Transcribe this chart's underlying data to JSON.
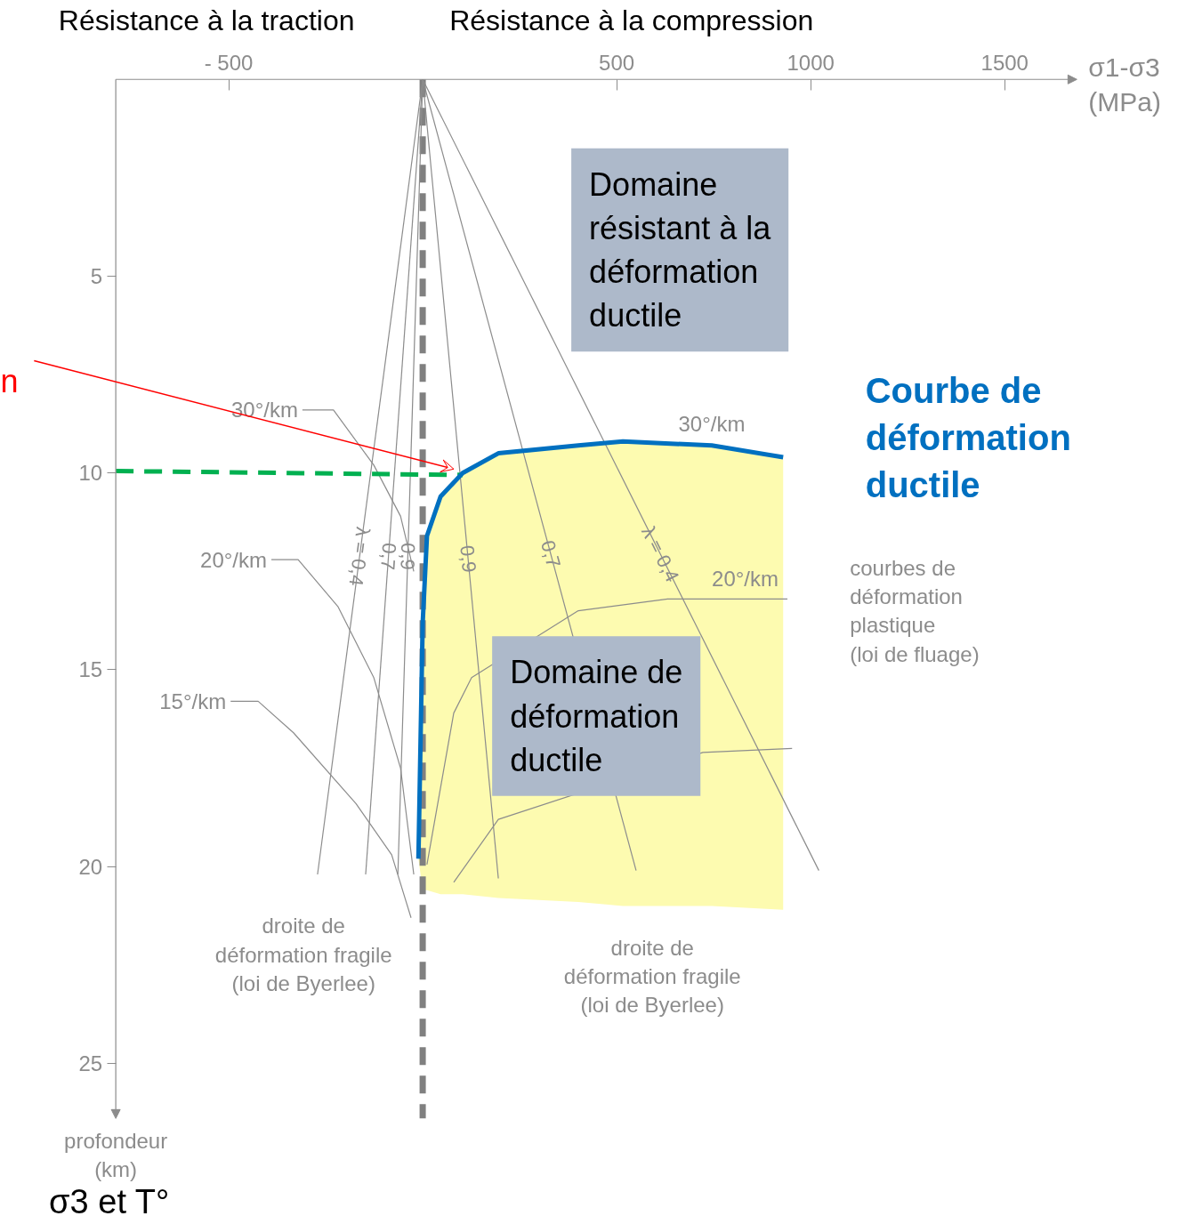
{
  "chart_data": {
    "type": "line",
    "xlabel": "σ1-σ3 (MPa)",
    "ylabel": "profondeur (km)",
    "xlim": [
      -791,
      1686
    ],
    "ylim": [
      26.4,
      0
    ],
    "xticks": [
      {
        "value": -500,
        "label": "- 500"
      },
      500,
      1000,
      1500
    ],
    "yticks": [
      5,
      10,
      15,
      20,
      25
    ],
    "grid": false,
    "series": [
      {
        "name": "λ = 0,4",
        "color": "#8c8c8c",
        "x": [
          0,
          1021
        ],
        "values": [
          0,
          20.1
        ]
      },
      {
        "name": "0,7",
        "color": "#8c8c8c",
        "x": [
          0,
          550
        ],
        "values": [
          0,
          20.1
        ]
      },
      {
        "name": "0,9",
        "color": "#8c8c8c",
        "x": [
          0,
          195
        ],
        "values": [
          0,
          20.3
        ]
      },
      {
        "name": "λ = 0,4",
        "color": "#8c8c8c",
        "x": [
          0,
          -271
        ],
        "values": [
          0,
          20.2
        ]
      },
      {
        "name": "0,7",
        "color": "#8c8c8c",
        "x": [
          0,
          -147
        ],
        "values": [
          0,
          20.2
        ]
      },
      {
        "name": "0,9",
        "color": "#8c8c8c",
        "x": [
          0,
          -64
        ],
        "values": [
          0,
          20.2
        ]
      },
      {
        "name": "30°/km",
        "color": "#8c8c8c",
        "x": [
          -310,
          -230,
          -126,
          -57,
          -23
        ],
        "values": [
          8.4,
          8.4,
          9.8,
          11.1,
          12.5
        ]
      },
      {
        "name": "20°/km",
        "color": "#8c8c8c",
        "x": [
          -390,
          -321,
          -218,
          -126,
          -57,
          -23
        ],
        "values": [
          12.2,
          12.2,
          13.4,
          15.2,
          17.5,
          20.2
        ]
      },
      {
        "name": "15°/km",
        "color": "#8c8c8c",
        "x": [
          -495,
          -424,
          -333,
          -172,
          -80,
          -30
        ],
        "values": [
          15.8,
          15.8,
          16.6,
          18.4,
          19.7,
          21.3
        ]
      },
      {
        "name": "20°/km",
        "color": "#8c8c8c",
        "x": [
          11,
          80,
          126,
          401,
          631,
          940
        ],
        "values": [
          19.95,
          16.1,
          15.2,
          13.5,
          13.2,
          13.2
        ]
      },
      {
        "color": "#8c8c8c",
        "x": [
          80,
          195,
          722,
          952
        ],
        "values": [
          20.4,
          18.8,
          17.1,
          17.0
        ]
      },
      {
        "color": "#00b050",
        "line_style": "dashed",
        "x": [
          -791,
          103
        ],
        "values": [
          9.95,
          10.05
        ]
      },
      {
        "name": "Courbe de\ndéformation\nductile",
        "color": "#0070c0",
        "x": [
          -11,
          0,
          11,
          46,
          103,
          195,
          401,
          516,
          745,
          929
        ],
        "values": [
          19.8,
          13.8,
          11.6,
          10.6,
          10.0,
          9.5,
          9.3,
          9.2,
          9.3,
          9.6
        ],
        "lower": [
          19.8,
          13.8,
          11.6,
          10.6,
          10.0,
          9.5,
          9.3,
          9.2,
          9.3,
          9.6
        ],
        "upper": [
          19.8,
          20.6,
          20.6,
          20.7,
          20.7,
          20.8,
          20.9,
          21.0,
          21.0,
          21.1
        ]
      }
    ],
    "ref_lines": [
      {
        "axis": "x",
        "value": 0,
        "color": "#808080",
        "line_style": "dashed"
      }
    ],
    "annotations": [
      "Résistance à la traction",
      "Résistance à la compression",
      "Domaine\nrésistant à la\ndéformation\nductile",
      "Domaine de\ndéformation\nductile",
      "courbes de\ndéformation\nplastique\n(loi de fluage)",
      "droite de\ndéformation fragile\n(loi de Byerlee)",
      "droite de\ndéformation fragile\n(loi de Byerlee)",
      "σ3 et T°",
      {
        "text": "30°/km",
        "x": 745,
        "y": 9.3
      },
      "n"
    ]
  }
}
